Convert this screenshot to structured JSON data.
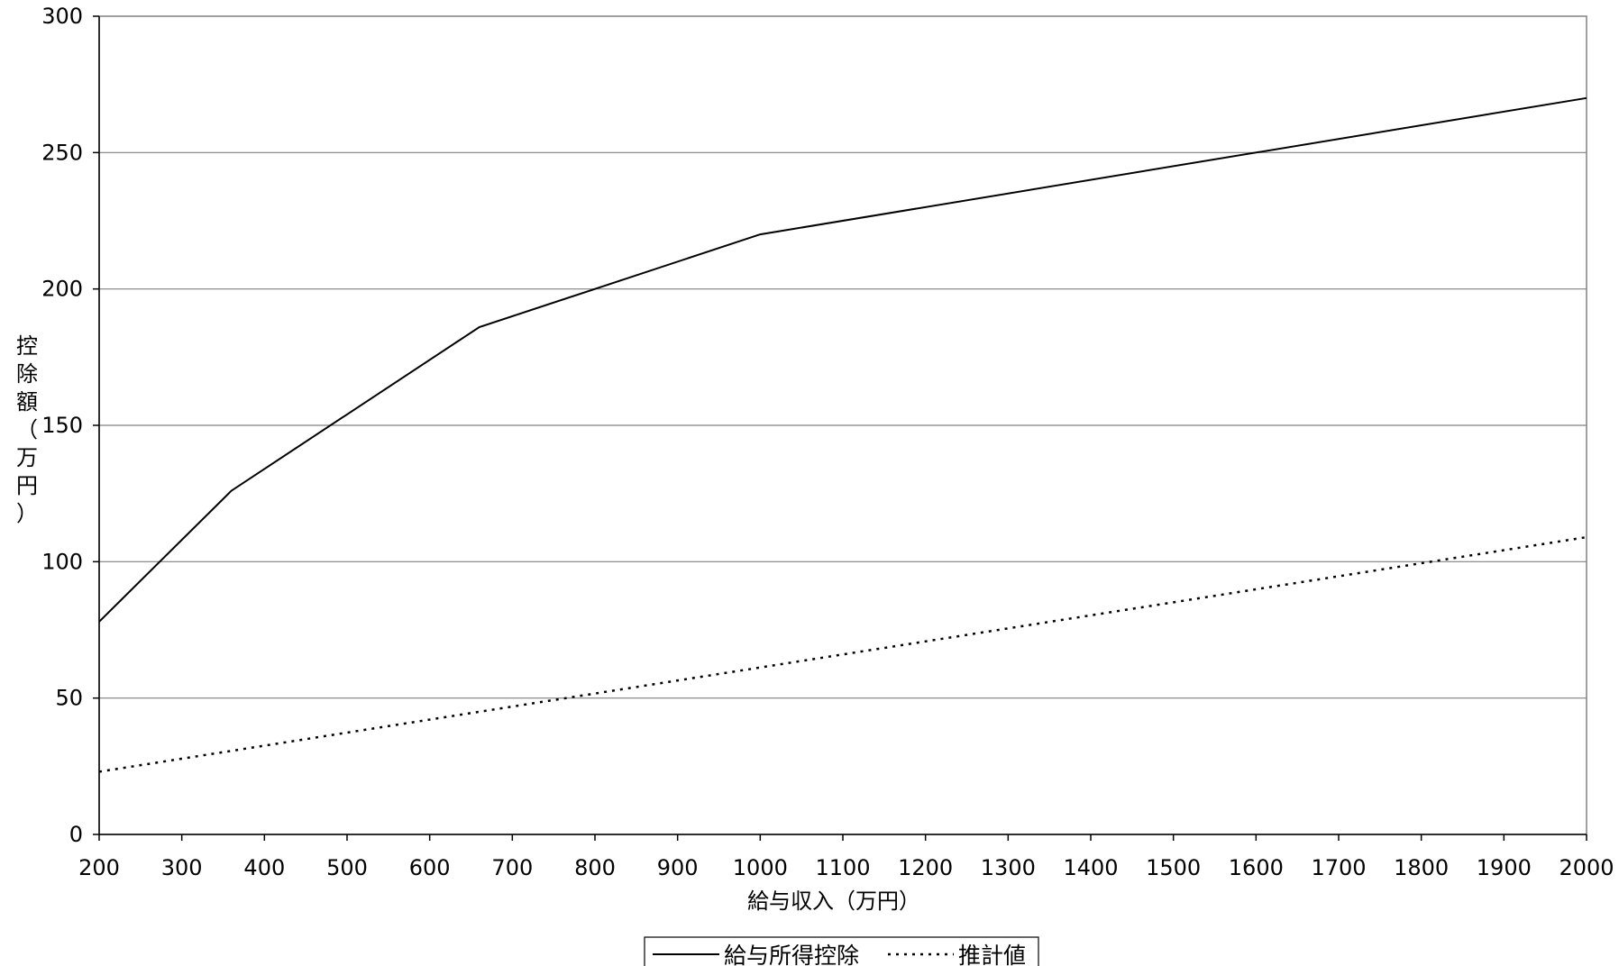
{
  "chart_data": {
    "type": "line",
    "xlabel": "給与収入（万円）",
    "ylabel_chars": [
      "控",
      "除",
      "額",
      "（",
      "万",
      "円",
      "）"
    ],
    "xlim": [
      200,
      2000
    ],
    "ylim": [
      0,
      300
    ],
    "x_ticks": [
      200,
      300,
      400,
      500,
      600,
      700,
      800,
      900,
      1000,
      1100,
      1200,
      1300,
      1400,
      1500,
      1600,
      1700,
      1800,
      1900,
      2000
    ],
    "y_ticks": [
      0,
      50,
      100,
      150,
      200,
      250,
      300
    ],
    "grid": "horizontal",
    "legend_position": "bottom-center",
    "series": [
      {
        "name": "給与所得控除",
        "style": "solid",
        "color": "#000000",
        "points": [
          [
            200,
            78
          ],
          [
            360,
            126
          ],
          [
            660,
            186
          ],
          [
            1000,
            220
          ],
          [
            2000,
            270
          ]
        ]
      },
      {
        "name": "推計値",
        "style": "dotted",
        "color": "#000000",
        "points": [
          [
            200,
            23
          ],
          [
            2000,
            109
          ]
        ]
      }
    ]
  }
}
